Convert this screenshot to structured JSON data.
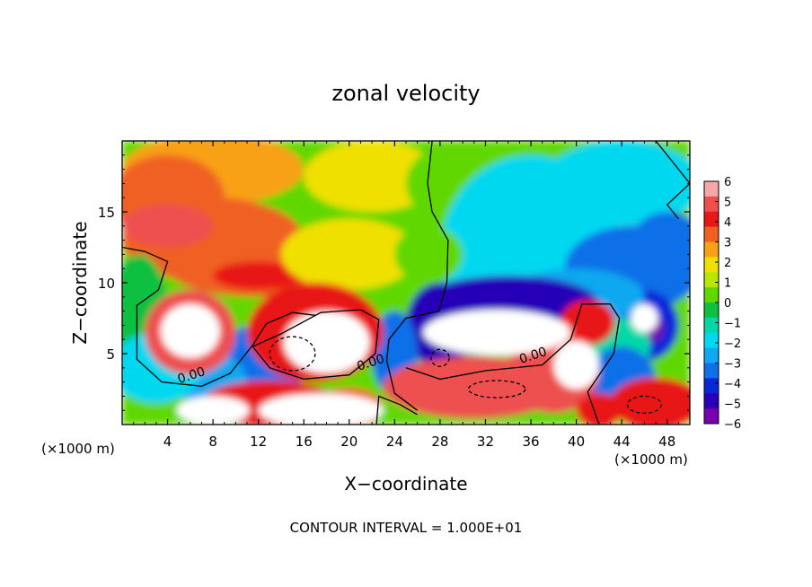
{
  "chart_data": {
    "type": "heatmap",
    "title": "zonal velocity",
    "xlabel": "X−coordinate",
    "ylabel": "Z−coordinate",
    "x_unit_left": "(×1000 m)",
    "x_unit_right": "(×1000 m)",
    "xlim": [
      0,
      50
    ],
    "ylim": [
      0,
      20
    ],
    "x_ticks": [
      "4",
      "8",
      "12",
      "16",
      "20",
      "24",
      "28",
      "32",
      "36",
      "40",
      "44",
      "48"
    ],
    "y_ticks": [
      "5",
      "10",
      "15"
    ],
    "colorbar": {
      "range": [
        -6,
        6
      ],
      "ticks": [
        "6",
        "5",
        "4",
        "3",
        "2",
        "1",
        "0",
        "−1",
        "−2",
        "−3",
        "−4",
        "−5",
        "−6"
      ],
      "colors": [
        "#f4a8a8",
        "#ee5050",
        "#e81818",
        "#f06020",
        "#f8a018",
        "#f0e000",
        "#b8e800",
        "#60d800",
        "#10c040",
        "#00d8a8",
        "#00d8f0",
        "#10a8f0",
        "#1070e8",
        "#0828d8",
        "#2800b8",
        "#7800b0"
      ]
    },
    "contour_labels": [
      "0.00",
      "0.00",
      "0.00"
    ],
    "grid": false,
    "contour_interval_label": "CONTOUR INTERVAL =",
    "contour_interval_value": "1.000E+01"
  }
}
